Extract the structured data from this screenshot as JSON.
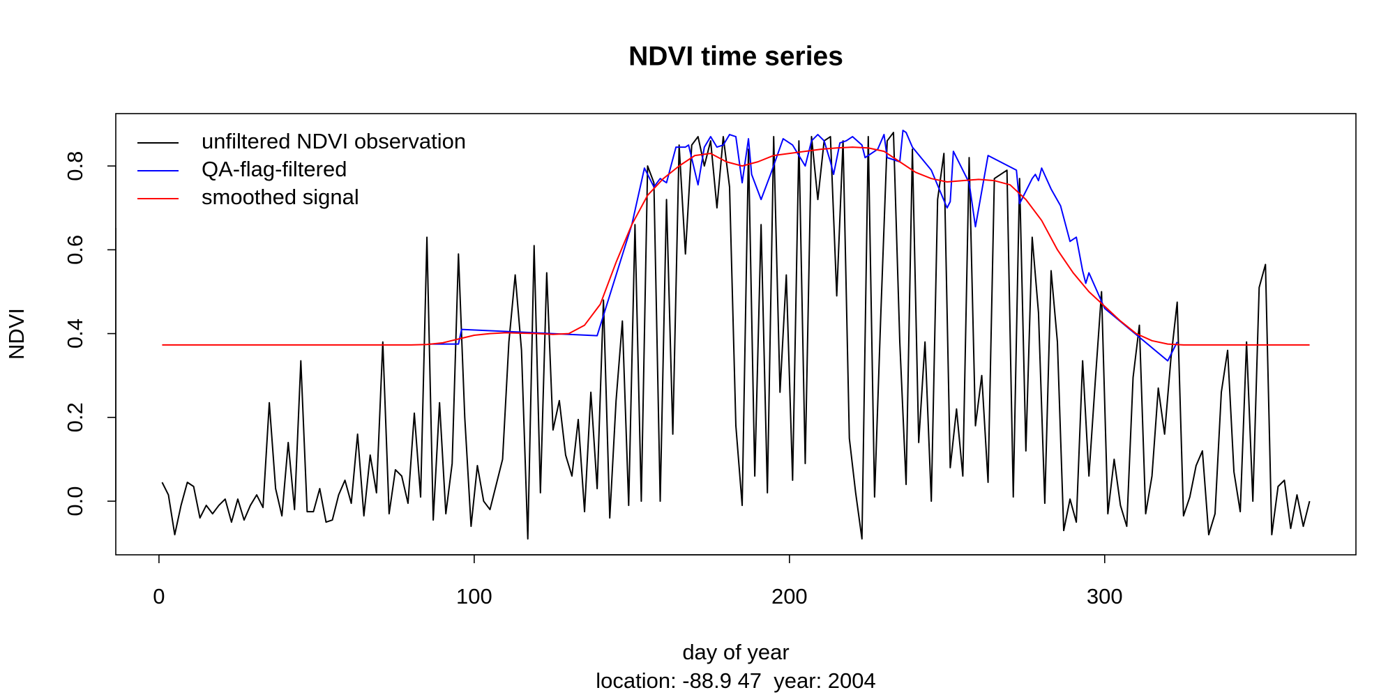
{
  "chart_data": {
    "type": "line",
    "title": "NDVI time series",
    "xlabel": "day of year",
    "ylabel": "NDVI",
    "subtitle": "location: -88.9 47  year: 2004",
    "legend": "topleft",
    "grid": false,
    "xlim": [
      -13.7,
      379.7
    ],
    "ylim": [
      -0.128,
      0.925
    ],
    "xticks": [
      0,
      100,
      200,
      300
    ],
    "yticks": [
      {
        "value": 0,
        "label": "0.0"
      },
      0.2,
      0.4,
      0.6,
      0.8
    ],
    "series": [
      {
        "name": "unfiltered NDVI observation",
        "color": "#000000",
        "x": [
          1,
          3,
          5,
          7,
          9,
          11,
          13,
          15,
          17,
          19,
          21,
          23,
          25,
          27,
          29,
          31,
          33,
          35,
          37,
          39,
          41,
          43,
          45,
          47,
          49,
          51,
          53,
          55,
          57,
          59,
          61,
          63,
          65,
          67,
          69,
          71,
          73,
          75,
          77,
          79,
          81,
          83,
          85,
          87,
          89,
          91,
          93,
          95,
          97,
          99,
          101,
          103,
          105,
          107,
          109,
          111,
          113,
          115,
          117,
          119,
          121,
          123,
          125,
          127,
          129,
          131,
          133,
          135,
          137,
          139,
          141,
          143,
          145,
          147,
          149,
          151,
          153,
          155,
          157,
          159,
          161,
          163,
          165,
          167,
          169,
          171,
          173,
          175,
          177,
          179,
          181,
          183,
          185,
          187,
          189,
          191,
          193,
          195,
          197,
          199,
          201,
          203,
          205,
          207,
          209,
          211,
          213,
          215,
          217,
          219,
          221,
          223,
          225,
          227,
          229,
          231,
          233,
          235,
          237,
          239,
          241,
          243,
          245,
          247,
          249,
          251,
          253,
          255,
          257,
          259,
          261,
          263,
          265,
          267,
          269,
          271,
          273,
          275,
          277,
          279,
          281,
          283,
          285,
          287,
          289,
          291,
          293,
          295,
          297,
          299,
          301,
          303,
          305,
          307,
          309,
          311,
          313,
          315,
          317,
          319,
          321,
          323,
          325,
          327,
          329,
          331,
          333,
          335,
          337,
          339,
          341,
          343,
          345,
          347,
          349,
          351,
          353,
          355,
          357,
          359,
          361,
          363,
          365
        ],
        "values": [
          0.045,
          0.015,
          -0.08,
          -0.01,
          0.045,
          0.035,
          -0.04,
          -0.01,
          -0.03,
          -0.01,
          0.005,
          -0.05,
          0.005,
          -0.045,
          -0.01,
          0.015,
          -0.015,
          0.235,
          0.03,
          -0.035,
          0.14,
          -0.02,
          0.335,
          -0.025,
          -0.025,
          0.03,
          -0.05,
          -0.045,
          0.015,
          0.05,
          -0.005,
          0.16,
          -0.035,
          0.11,
          0.02,
          0.38,
          -0.03,
          0.075,
          0.06,
          -0.005,
          0.21,
          0.01,
          0.63,
          -0.045,
          0.235,
          -0.03,
          0.09,
          0.59,
          0.2,
          -0.06,
          0.085,
          0.0,
          -0.02,
          0.04,
          0.1,
          0.38,
          0.54,
          0.36,
          -0.09,
          0.61,
          0.02,
          0.545,
          0.17,
          0.24,
          0.11,
          0.06,
          0.195,
          -0.025,
          0.26,
          0.03,
          0.48,
          -0.04,
          0.24,
          0.43,
          -0.01,
          0.66,
          0.0,
          0.8,
          0.76,
          0.0,
          0.72,
          0.16,
          0.85,
          0.59,
          0.85,
          0.87,
          0.8,
          0.86,
          0.7,
          0.87,
          0.75,
          0.18,
          -0.01,
          0.84,
          0.06,
          0.66,
          0.02,
          0.87,
          0.26,
          0.54,
          0.05,
          0.86,
          0.09,
          0.87,
          0.72,
          0.86,
          0.87,
          0.49,
          0.86,
          0.15,
          0.02,
          -0.09,
          0.87,
          0.01,
          0.45,
          0.86,
          0.88,
          0.38,
          0.04,
          0.84,
          0.14,
          0.38,
          0.0,
          0.72,
          0.83,
          0.08,
          0.22,
          0.06,
          0.82,
          0.18,
          0.3,
          0.045,
          0.77,
          0.78,
          0.79,
          0.01,
          0.77,
          0.12,
          0.63,
          0.45,
          -0.005,
          0.55,
          0.38,
          -0.07,
          0.005,
          -0.05,
          0.335,
          0.06,
          0.285,
          0.5,
          -0.03,
          0.1,
          -0.01,
          -0.06,
          0.295,
          0.42,
          -0.03,
          0.06,
          0.27,
          0.16,
          0.34,
          0.475,
          -0.035,
          0.01,
          0.085,
          0.12,
          -0.08,
          -0.03,
          0.26,
          0.36,
          0.07,
          -0.025,
          0.38,
          0.0,
          0.51,
          0.565,
          -0.08,
          0.035,
          0.05,
          -0.065,
          0.015,
          -0.06,
          0.0
        ]
      },
      {
        "name": "QA-flag-filtered",
        "color": "#0000ff",
        "x": [
          86,
          95,
          96,
          139,
          150,
          154,
          157,
          159,
          161,
          164,
          167,
          168,
          171,
          173,
          175,
          177,
          179,
          181,
          183,
          185,
          187,
          188,
          191,
          194,
          198,
          201,
          205,
          207,
          209,
          211,
          213,
          214,
          216,
          218,
          220,
          223,
          224,
          228,
          230,
          231,
          235,
          236,
          237,
          239,
          245,
          250,
          251,
          252,
          257,
          259,
          263,
          272,
          273,
          277,
          278,
          279,
          280,
          283,
          286,
          289,
          291,
          293,
          294,
          295,
          300,
          320,
          323
        ],
        "values": [
          0.375,
          0.375,
          0.41,
          0.395,
          0.66,
          0.795,
          0.75,
          0.77,
          0.76,
          0.845,
          0.845,
          0.85,
          0.755,
          0.845,
          0.87,
          0.845,
          0.85,
          0.875,
          0.87,
          0.76,
          0.865,
          0.78,
          0.72,
          0.78,
          0.865,
          0.85,
          0.8,
          0.86,
          0.875,
          0.86,
          0.81,
          0.78,
          0.855,
          0.86,
          0.87,
          0.85,
          0.82,
          0.84,
          0.875,
          0.82,
          0.81,
          0.885,
          0.88,
          0.845,
          0.79,
          0.7,
          0.715,
          0.835,
          0.76,
          0.655,
          0.825,
          0.79,
          0.71,
          0.77,
          0.78,
          0.765,
          0.795,
          0.745,
          0.705,
          0.62,
          0.63,
          0.55,
          0.52,
          0.545,
          0.46,
          0.335,
          0.38
        ]
      },
      {
        "name": "smoothed signal",
        "color": "#ff0000",
        "x": [
          1,
          5,
          10,
          15,
          20,
          25,
          30,
          35,
          40,
          45,
          50,
          55,
          60,
          65,
          70,
          75,
          80,
          85,
          90,
          95,
          100,
          105,
          110,
          115,
          120,
          125,
          130,
          135,
          140,
          145,
          150,
          155,
          160,
          165,
          170,
          175,
          180,
          185,
          190,
          195,
          200,
          205,
          210,
          215,
          220,
          225,
          230,
          235,
          240,
          245,
          250,
          255,
          260,
          265,
          270,
          275,
          280,
          285,
          290,
          295,
          300,
          305,
          310,
          315,
          320,
          325,
          330,
          335,
          340,
          345,
          350,
          355,
          360,
          365
        ],
        "values": [
          0.373,
          0.373,
          0.373,
          0.373,
          0.373,
          0.373,
          0.373,
          0.373,
          0.373,
          0.373,
          0.373,
          0.373,
          0.373,
          0.373,
          0.373,
          0.373,
          0.373,
          0.374,
          0.378,
          0.387,
          0.396,
          0.4,
          0.402,
          0.401,
          0.4,
          0.398,
          0.4,
          0.42,
          0.47,
          0.57,
          0.66,
          0.73,
          0.77,
          0.8,
          0.825,
          0.83,
          0.81,
          0.8,
          0.81,
          0.825,
          0.83,
          0.835,
          0.84,
          0.843,
          0.845,
          0.843,
          0.835,
          0.81,
          0.785,
          0.77,
          0.762,
          0.765,
          0.768,
          0.765,
          0.755,
          0.72,
          0.67,
          0.6,
          0.545,
          0.5,
          0.465,
          0.43,
          0.4,
          0.383,
          0.375,
          0.373,
          0.373,
          0.373,
          0.373,
          0.373,
          0.373,
          0.373,
          0.373,
          0.373
        ]
      }
    ]
  }
}
